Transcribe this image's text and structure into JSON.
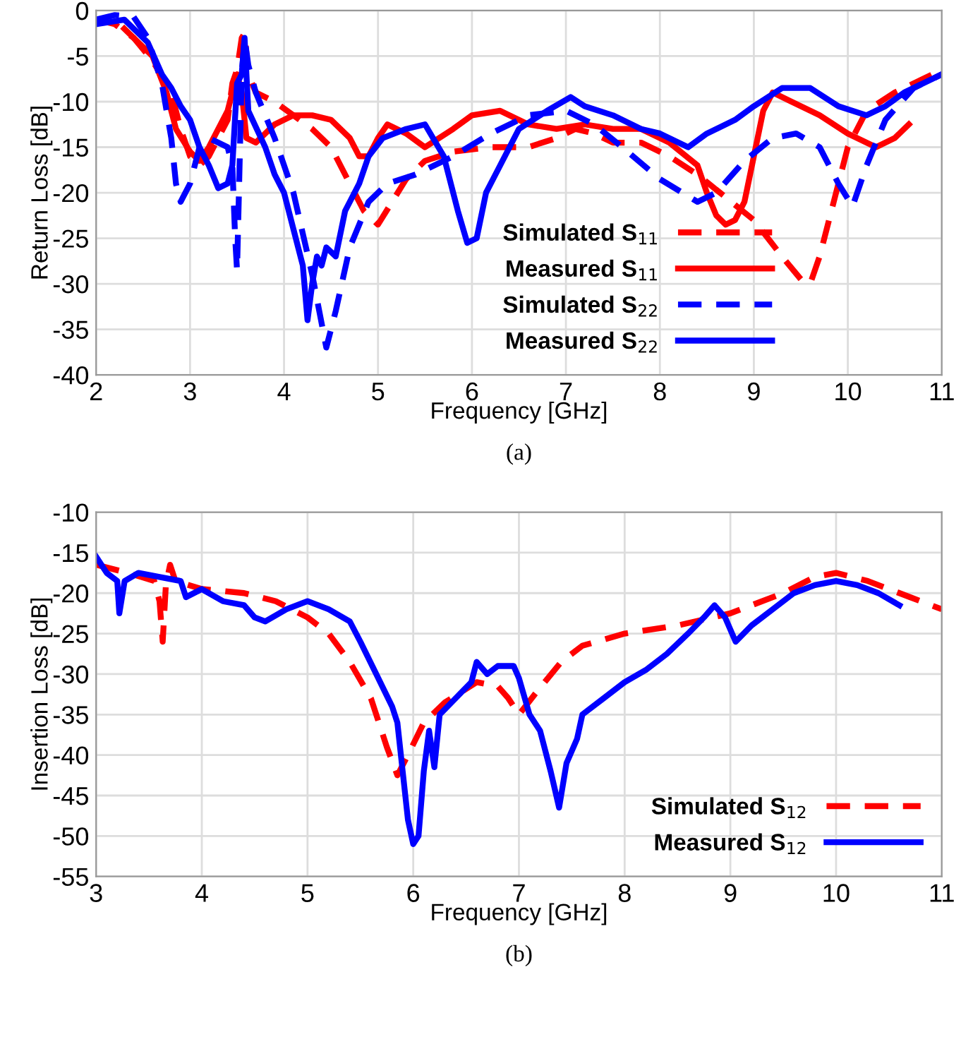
{
  "chart_data": [
    {
      "type": "line",
      "xlabel": "Frequency [GHz]",
      "ylabel": "Return Loss [dB]",
      "xlim": [
        2,
        11
      ],
      "ylim": [
        -40,
        0
      ],
      "xticks": [
        2,
        3,
        4,
        5,
        6,
        7,
        8,
        9,
        10,
        11
      ],
      "yticks": [
        -40,
        -35,
        -30,
        -25,
        -20,
        -15,
        -10,
        -5,
        0
      ],
      "grid": true,
      "legend": "bottom",
      "annotations": [
        "(a)"
      ],
      "series": [
        {
          "name": "Simulated S$_{11}$",
          "color": "#ff0000",
          "line_style": "dashed",
          "x": [
            2,
            2.2,
            2.4,
            2.6,
            2.8,
            2.9,
            3.0,
            3.1,
            3.2,
            3.3,
            3.4,
            3.45,
            3.5,
            3.55,
            3.58,
            3.62,
            3.7,
            3.9,
            4.1,
            4.3,
            4.5,
            4.7,
            4.85,
            5.0,
            5.15,
            5.3,
            5.5,
            5.8,
            6.2,
            6.6,
            6.9,
            7.1,
            7.3,
            7.5,
            7.8,
            8.1,
            8.4,
            8.7,
            9.0,
            9.3,
            9.5,
            9.6,
            9.7,
            9.85,
            10.0,
            10.2,
            10.5,
            10.8,
            11
          ],
          "values": [
            -1,
            -1.5,
            -3,
            -5.5,
            -9,
            -13,
            -16,
            -17,
            -16,
            -14,
            -12,
            -8,
            -6.5,
            -3,
            -2.5,
            -7,
            -9,
            -10,
            -11.5,
            -13,
            -15,
            -19,
            -22,
            -23.5,
            -21,
            -18.5,
            -16.5,
            -15.5,
            -15,
            -15,
            -14,
            -13,
            -13.5,
            -14.5,
            -14.5,
            -16,
            -18,
            -20.5,
            -23,
            -27,
            -29.5,
            -30,
            -27,
            -21,
            -15,
            -11,
            -9,
            -7.5,
            -6.5
          ]
        },
        {
          "name": "Measured S$_{11}$",
          "color": "#ff0000",
          "line_style": "solid",
          "x": [
            2.3,
            2.6,
            2.75,
            2.85,
            3.0,
            3.1,
            3.2,
            3.4,
            3.45,
            3.5,
            3.55,
            3.6,
            3.7,
            3.9,
            4.1,
            4.3,
            4.5,
            4.7,
            4.8,
            4.9,
            5.0,
            5.1,
            5.3,
            5.5,
            5.8,
            6.0,
            6.3,
            6.6,
            6.9,
            7.2,
            7.5,
            7.8,
            8.1,
            8.4,
            8.5,
            8.6,
            8.7,
            8.8,
            8.9,
            9.0,
            9.1,
            9.2,
            9.4,
            9.7,
            10.0,
            10.3,
            10.5,
            10.65
          ],
          "values": [
            -2,
            -5,
            -9,
            -13,
            -15.5,
            -16.5,
            -15,
            -11,
            -9,
            -7,
            -9,
            -14,
            -14.5,
            -12.5,
            -11.5,
            -11.5,
            -12,
            -14,
            -16,
            -16,
            -14,
            -12.5,
            -13.5,
            -15,
            -13,
            -11.5,
            -11,
            -12.5,
            -13,
            -12.5,
            -13,
            -13,
            -14.5,
            -17,
            -20,
            -22.5,
            -23.5,
            -23,
            -21,
            -16,
            -11,
            -9,
            -10,
            -11.5,
            -13.5,
            -15,
            -14,
            -12.5
          ]
        },
        {
          "name": "Simulated S$_{22}$",
          "color": "#0000ff",
          "line_style": "dashed",
          "x": [
            2,
            2.2,
            2.4,
            2.55,
            2.7,
            2.8,
            2.85,
            2.9,
            3.0,
            3.1,
            3.2,
            3.3,
            3.4,
            3.45,
            3.48,
            3.5,
            3.52,
            3.55,
            3.58,
            3.62,
            3.7,
            3.9,
            4.1,
            4.3,
            4.45,
            4.55,
            4.7,
            4.9,
            5.1,
            5.4,
            5.8,
            6.2,
            6.6,
            7.0,
            7.3,
            7.6,
            8.0,
            8.4,
            8.6,
            8.9,
            9.2,
            9.45,
            9.7,
            9.9,
            10.05,
            10.2,
            10.4,
            10.7,
            11
          ],
          "values": [
            -1,
            -0.5,
            -0.7,
            -3,
            -8,
            -14,
            -19,
            -21,
            -19,
            -15,
            -14,
            -14.5,
            -15,
            -17,
            -25,
            -28.5,
            -20,
            -7,
            -3,
            -6,
            -9,
            -14,
            -20,
            -29,
            -37,
            -33,
            -26,
            -21,
            -19,
            -18,
            -16,
            -13.5,
            -11.5,
            -11,
            -12.5,
            -15,
            -18.5,
            -21,
            -20,
            -16.5,
            -14,
            -13.5,
            -15,
            -19,
            -21.5,
            -17,
            -12,
            -8.5,
            -7
          ]
        },
        {
          "name": "Measured S$_{22}$",
          "color": "#0000ff",
          "line_style": "solid",
          "x": [
            2,
            2.3,
            2.55,
            2.7,
            2.8,
            2.9,
            3.0,
            3.1,
            3.2,
            3.3,
            3.4,
            3.45,
            3.5,
            3.55,
            3.58,
            3.62,
            3.8,
            3.9,
            4.0,
            4.1,
            4.2,
            4.25,
            4.3,
            4.35,
            4.4,
            4.45,
            4.55,
            4.65,
            4.8,
            4.9,
            5.05,
            5.3,
            5.5,
            5.7,
            5.85,
            5.95,
            6.05,
            6.15,
            6.3,
            6.5,
            6.8,
            7.05,
            7.2,
            7.5,
            7.8,
            8.0,
            8.3,
            8.5,
            8.8,
            9.0,
            9.3,
            9.6,
            9.9,
            10.2,
            10.4,
            10.6,
            10.9,
            11
          ],
          "values": [
            -1.5,
            -1,
            -3.5,
            -7,
            -8.5,
            -10.5,
            -12,
            -15,
            -17,
            -19.5,
            -19,
            -17,
            -8,
            -7,
            -3,
            -11,
            -15,
            -18,
            -20,
            -24,
            -28,
            -34,
            -30,
            -27,
            -28,
            -26,
            -27,
            -22,
            -19,
            -16,
            -14,
            -13,
            -12.5,
            -16,
            -22,
            -25.5,
            -25,
            -20,
            -17,
            -13,
            -11,
            -9.5,
            -10.5,
            -11.5,
            -13,
            -13.5,
            -15,
            -13.5,
            -12,
            -10.5,
            -8.5,
            -8.5,
            -10.5,
            -11.5,
            -10.5,
            -9,
            -7.5,
            -7
          ]
        }
      ]
    },
    {
      "type": "line",
      "xlabel": "Frequency [GHz]",
      "ylabel": "Insertion Loss [dB]",
      "xlim": [
        3,
        11
      ],
      "ylim": [
        -55,
        -10
      ],
      "xticks": [
        3,
        4,
        5,
        6,
        7,
        8,
        9,
        10,
        11
      ],
      "yticks": [
        -55,
        -50,
        -45,
        -40,
        -35,
        -30,
        -25,
        -20,
        -15,
        -10
      ],
      "grid": true,
      "legend": "bottom right",
      "annotations": [
        "(b)"
      ],
      "series": [
        {
          "name": "Simulated S$_{12}$",
          "color": "#ff0000",
          "line_style": "dashed",
          "x": [
            3,
            3.3,
            3.55,
            3.6,
            3.63,
            3.66,
            3.7,
            3.75,
            4.0,
            4.4,
            4.7,
            5.0,
            5.2,
            5.4,
            5.6,
            5.75,
            5.85,
            5.95,
            6.1,
            6.3,
            6.6,
            6.8,
            6.9,
            7.0,
            7.15,
            7.4,
            7.6,
            8.0,
            8.5,
            9.0,
            9.5,
            9.8,
            10.0,
            10.3,
            10.7,
            11
          ],
          "values": [
            -16.5,
            -17.5,
            -18.5,
            -21,
            -26,
            -19,
            -16.5,
            -18.5,
            -19.5,
            -20,
            -21,
            -23,
            -25,
            -28.5,
            -33,
            -39,
            -42.5,
            -40,
            -36,
            -33.5,
            -31,
            -31.5,
            -33,
            -35,
            -32.5,
            -28.5,
            -26.5,
            -25,
            -24,
            -22.5,
            -20,
            -18,
            -17.5,
            -18.5,
            -20.5,
            -22
          ]
        },
        {
          "name": "Measured S$_{12}$",
          "color": "#0000ff",
          "line_style": "solid",
          "x": [
            3,
            3.1,
            3.2,
            3.22,
            3.27,
            3.4,
            3.6,
            3.8,
            3.85,
            4.0,
            4.2,
            4.4,
            4.5,
            4.6,
            4.8,
            5.0,
            5.2,
            5.4,
            5.5,
            5.65,
            5.8,
            5.85,
            5.9,
            5.95,
            6.0,
            6.05,
            6.1,
            6.15,
            6.2,
            6.25,
            6.4,
            6.55,
            6.6,
            6.7,
            6.8,
            6.95,
            7.0,
            7.1,
            7.2,
            7.3,
            7.38,
            7.45,
            7.55,
            7.6,
            7.8,
            8.0,
            8.2,
            8.4,
            8.6,
            8.75,
            8.85,
            8.95,
            9.05,
            9.2,
            9.4,
            9.6,
            9.8,
            10.0,
            10.2,
            10.4,
            10.6
          ],
          "values": [
            -15.5,
            -17.5,
            -18.5,
            -22.5,
            -18.5,
            -17.5,
            -18,
            -18.5,
            -20.5,
            -19.5,
            -21,
            -21.5,
            -23,
            -23.5,
            -22,
            -21,
            -22,
            -23.5,
            -26,
            -30,
            -34,
            -36,
            -42,
            -48,
            -51,
            -50,
            -42,
            -37,
            -41.5,
            -35,
            -33,
            -31,
            -28.5,
            -30,
            -29,
            -29,
            -30.5,
            -35,
            -37,
            -42,
            -46.5,
            -41,
            -38,
            -35,
            -33,
            -31,
            -29.5,
            -27.5,
            -25,
            -23,
            -21.5,
            -23,
            -26,
            -24,
            -22,
            -20,
            -19,
            -18.5,
            -19,
            -20,
            -21.5
          ]
        }
      ]
    }
  ]
}
